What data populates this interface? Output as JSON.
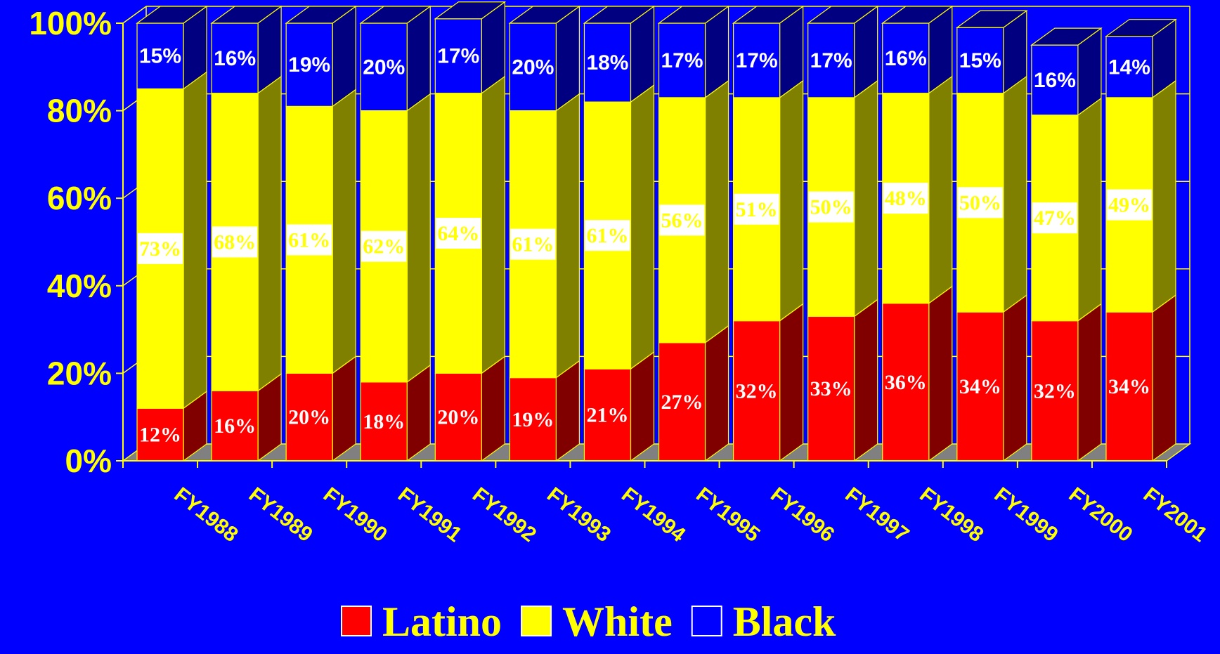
{
  "chart_data": {
    "type": "bar",
    "stacked": true,
    "percent": true,
    "three_d": true,
    "categories": [
      "FY1988",
      "FY1989",
      "FY1990",
      "FY1991",
      "FY1992",
      "FY1993",
      "FY1994",
      "FY1995",
      "FY1996",
      "FY1997",
      "FY1998",
      "FY1999",
      "FY2000",
      "FY2001"
    ],
    "series": [
      {
        "name": "Latino",
        "color": "#ff0000",
        "side_color": "#800000",
        "values": [
          12,
          16,
          20,
          18,
          20,
          19,
          21,
          27,
          32,
          33,
          36,
          34,
          32,
          34
        ],
        "labels": [
          "12%",
          "16%",
          "20%",
          "18%",
          "20%",
          "19%",
          "21%",
          "27%",
          "32%",
          "33%",
          "36%",
          "34%",
          "32%",
          "34%"
        ]
      },
      {
        "name": "White",
        "color": "#ffff00",
        "side_color": "#808000",
        "values": [
          73,
          68,
          61,
          62,
          64,
          61,
          61,
          56,
          51,
          50,
          48,
          50,
          47,
          49
        ],
        "labels": [
          "73%",
          "68%",
          "61%",
          "62%",
          "64%",
          "61%",
          "61%",
          "56%",
          "51%",
          "50%",
          "48%",
          "50%",
          "47%",
          "49%"
        ]
      },
      {
        "name": "Black",
        "color": "#0000ff",
        "side_color": "#000080",
        "values": [
          15,
          16,
          19,
          20,
          17,
          20,
          18,
          17,
          17,
          17,
          16,
          15,
          16,
          14
        ],
        "labels": [
          "15%",
          "16%",
          "19%",
          "20%",
          "17%",
          "20%",
          "18%",
          "17%",
          "17%",
          "17%",
          "16%",
          "15%",
          "16%",
          "14%"
        ]
      }
    ],
    "y_ticks": [
      "0%",
      "20%",
      "40%",
      "60%",
      "80%",
      "100%"
    ],
    "ylim": [
      0,
      100
    ],
    "grid": true,
    "legend_position": "bottom",
    "colors": {
      "background": "#0000ff",
      "text": "#ffff00",
      "grid": "#ffff00",
      "floor": "#808080"
    }
  }
}
